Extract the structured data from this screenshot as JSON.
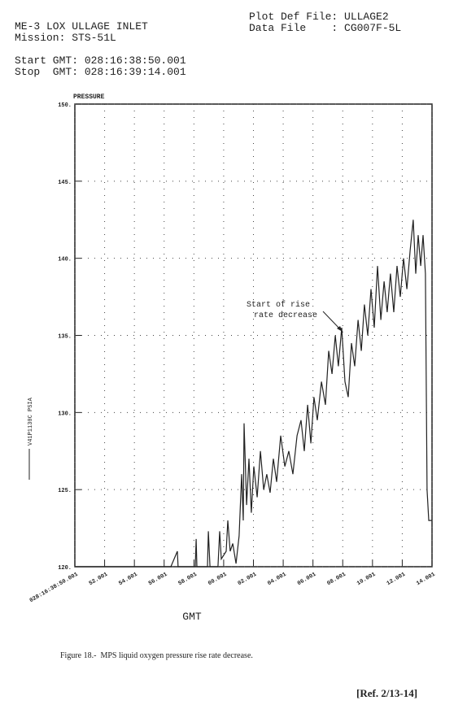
{
  "chart_data": {
    "type": "line",
    "title": "ME-3 LOX ULLAGE INLET",
    "subtitle": "Mission: STS-51L",
    "info": [
      "Plot Def File: ULLAGE2",
      "Data File    : CG007F-5L",
      "Start GMT: 028:16:38:50.001",
      "Stop  GMT: 028:16:39:14.001"
    ],
    "ylabel": "PRESSURE",
    "xlabel": "GMT",
    "annotation": [
      "Start of rise",
      "rate decrease"
    ],
    "caption": "Figure 18.-  MPS liquid oxygen pressure rise rate decrease.",
    "reference": "[Ref. 2/13-14]",
    "grid": true,
    "xlim": [
      50.001,
      74.001
    ],
    "ylim": [
      120,
      150
    ],
    "yticks": [
      {
        "value": 120,
        "label": "120."
      },
      {
        "value": 125,
        "label": "125."
      },
      {
        "value": 130,
        "label": "130."
      },
      {
        "value": 135,
        "label": "135."
      },
      {
        "value": 140,
        "label": "140."
      },
      {
        "value": 145,
        "label": "145."
      },
      {
        "value": 150,
        "label": "150."
      }
    ],
    "xticks": [
      {
        "value": 50.001,
        "label": "028:16:38:50.001"
      },
      {
        "value": 52.001,
        "label": "52.001"
      },
      {
        "value": 54.001,
        "label": "54.001"
      },
      {
        "value": 56.001,
        "label": "56.001"
      },
      {
        "value": 58.001,
        "label": "58.001"
      },
      {
        "value": 60.001,
        "label": "00.001"
      },
      {
        "value": 62.001,
        "label": "02.001"
      },
      {
        "value": 64.001,
        "label": "04.001"
      },
      {
        "value": 66.001,
        "label": "06.001"
      },
      {
        "value": 68.001,
        "label": "08.001"
      },
      {
        "value": 70.001,
        "label": "10.001"
      },
      {
        "value": 72.001,
        "label": "12.001"
      },
      {
        "value": 74.001,
        "label": "14.001"
      }
    ],
    "x": [
      50.01,
      53.17,
      56.45,
      56.89,
      56.94,
      58.09,
      58.15,
      58.2,
      58.91,
      58.97,
      59.08,
      59.62,
      59.73,
      59.84,
      60.17,
      60.28,
      60.44,
      60.61,
      60.83,
      61.04,
      61.21,
      61.32,
      61.37,
      61.54,
      61.7,
      61.86,
      62.03,
      62.25,
      62.47,
      62.69,
      62.9,
      63.12,
      63.34,
      63.56,
      63.83,
      64.11,
      64.38,
      64.65,
      64.93,
      65.2,
      65.42,
      65.64,
      65.86,
      66.07,
      66.29,
      66.57,
      66.84,
      67.06,
      67.28,
      67.5,
      67.71,
      67.93,
      68.15,
      68.37,
      68.59,
      68.81,
      69.03,
      69.25,
      69.46,
      69.68,
      69.9,
      70.12,
      70.34,
      70.56,
      70.78,
      70.99,
      71.21,
      71.43,
      71.65,
      71.87,
      72.09,
      72.31,
      72.53,
      72.74,
      72.91,
      73.07,
      73.24,
      73.4,
      73.56,
      73.67,
      73.78,
      74.0
    ],
    "series": [
      {
        "name": "V41P1130C PSIA",
        "color": "#222222",
        "values": [
          120,
          120,
          120,
          121,
          120,
          120,
          121.8,
          120,
          120,
          122.3,
          120,
          120,
          122.3,
          120.5,
          121,
          123,
          121,
          121.5,
          120.2,
          122,
          126,
          123,
          129.3,
          124,
          127,
          123.5,
          126.5,
          124.5,
          127.5,
          125,
          126,
          124.8,
          127,
          125.5,
          128.5,
          126.5,
          127.5,
          126,
          128.5,
          129.5,
          127.5,
          130.5,
          128,
          131,
          129.5,
          132,
          130.5,
          134,
          132.5,
          135,
          133,
          135.5,
          132,
          131,
          134.5,
          133,
          136,
          134,
          137,
          135,
          138,
          135.5,
          139.5,
          136,
          138.5,
          136.5,
          139,
          136.5,
          139.5,
          137.5,
          140,
          138,
          140.5,
          142.5,
          139,
          141.5,
          139.5,
          141.5,
          139,
          125,
          123,
          123
        ]
      }
    ]
  }
}
